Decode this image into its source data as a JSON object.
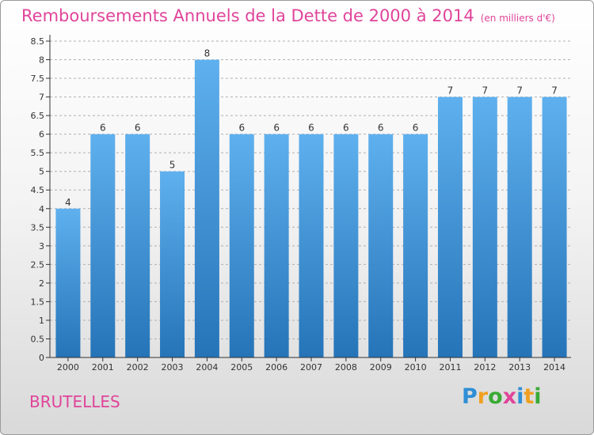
{
  "title": "Remboursements Annuels de la Dette de 2000 à 2014",
  "subtitle": "(en milliers d'€)",
  "place": "BRUTELLES",
  "logo": {
    "text": "Proxiti",
    "letters": [
      "P",
      "r",
      "o",
      "x",
      "i",
      "t",
      "i"
    ],
    "colors": [
      "#2f8fd6",
      "#f0a020",
      "#3aaa35",
      "#e0449a",
      "#2f8fd6",
      "#f0a020",
      "#3aaa35"
    ]
  },
  "colors": {
    "accent": "#e0449a",
    "bar_top": "#5fb0ee",
    "bar_bottom": "#2574b8",
    "axis": "#333333",
    "grid": "#b0b0b0"
  },
  "chart_data": {
    "type": "bar",
    "title": "Remboursements Annuels de la Dette de 2000 à 2014",
    "subtitle": "(en milliers d'€)",
    "categories": [
      "2000",
      "2001",
      "2002",
      "2003",
      "2004",
      "2005",
      "2006",
      "2007",
      "2008",
      "2009",
      "2010",
      "2011",
      "2012",
      "2013",
      "2014"
    ],
    "values": [
      4,
      6,
      6,
      5,
      8,
      6,
      6,
      6,
      6,
      6,
      6,
      7,
      7,
      7,
      7
    ],
    "ylim": [
      0,
      8.5
    ],
    "yticks": [
      "0",
      "0.5",
      "1",
      "1.5",
      "2",
      "2.5",
      "3",
      "3.5",
      "4",
      "4.5",
      "5",
      "5.5",
      "6",
      "6.5",
      "7",
      "7.5",
      "8",
      "8.5"
    ],
    "grid": "horizontal dashed",
    "xlabel": "",
    "ylabel": ""
  }
}
